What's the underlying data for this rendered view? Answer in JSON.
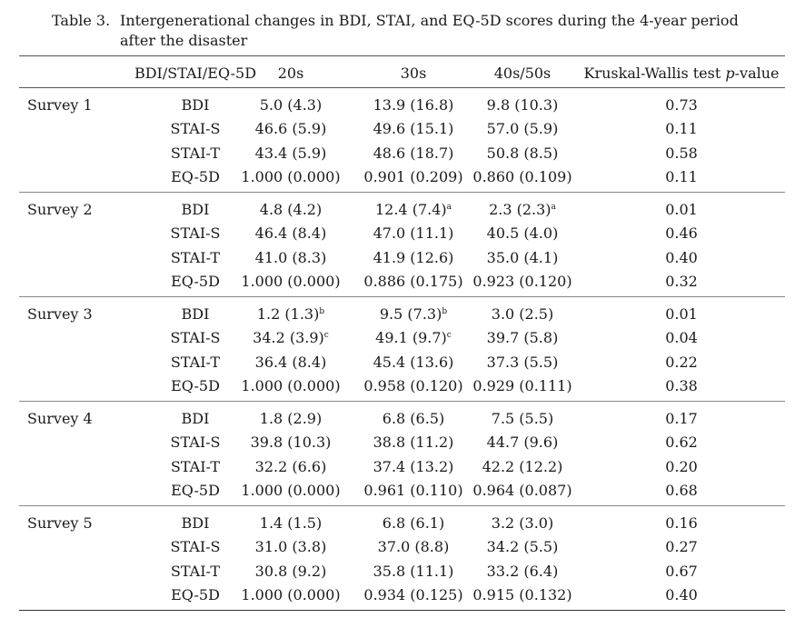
{
  "caption": {
    "label": "Table 3.",
    "text": "Intergenerational changes in BDI, STAI, and EQ-5D scores during the 4-year period after the disaster"
  },
  "header": {
    "measure": "BDI/STAI/EQ-5D",
    "col_20s": "20s",
    "col_30s": "30s",
    "col_40s50s": "40s/50s",
    "col_p_prefix": "Kruskal-Wallis test ",
    "col_p_italic": "p",
    "col_p_suffix": "-value"
  },
  "surveys": [
    {
      "name": "Survey 1",
      "rows": [
        {
          "measure": "BDI",
          "v20": "5.0 (4.3)",
          "v30": "13.9 (16.8)",
          "v40": "9.8 (10.3)",
          "p": "0.73"
        },
        {
          "measure": "STAI-S",
          "v20": "46.6 (5.9)",
          "v30": "49.6 (15.1)",
          "v40": "57.0 (5.9)",
          "p": "0.11"
        },
        {
          "measure": "STAI-T",
          "v20": "43.4 (5.9)",
          "v30": "48.6 (18.7)",
          "v40": "50.8 (8.5)",
          "p": "0.58"
        },
        {
          "measure": "EQ-5D",
          "v20": "1.000 (0.000)",
          "v30": "0.901 (0.209)",
          "v40": "0.860 (0.109)",
          "p": "0.11"
        }
      ]
    },
    {
      "name": "Survey 2",
      "rows": [
        {
          "measure": "BDI",
          "v20": "4.8 (4.2)",
          "v30": "12.4 (7.4)",
          "s30": "a",
          "v40": "2.3 (2.3)",
          "s40": "a",
          "p": "0.01"
        },
        {
          "measure": "STAI-S",
          "v20": "46.4 (8.4)",
          "v30": "47.0 (11.1)",
          "v40": "40.5 (4.0)",
          "p": "0.46"
        },
        {
          "measure": "STAI-T",
          "v20": "41.0 (8.3)",
          "v30": "41.9 (12.6)",
          "v40": "35.0 (4.1)",
          "p": "0.40"
        },
        {
          "measure": "EQ-5D",
          "v20": "1.000 (0.000)",
          "v30": "0.886 (0.175)",
          "v40": "0.923 (0.120)",
          "p": "0.32"
        }
      ]
    },
    {
      "name": "Survey 3",
      "rows": [
        {
          "measure": "BDI",
          "v20": "1.2 (1.3)",
          "s20": "b",
          "v30": "9.5 (7.3)",
          "s30": "b",
          "v40": "3.0 (2.5)",
          "p": "0.01"
        },
        {
          "measure": "STAI-S",
          "v20": "34.2 (3.9)",
          "s20": "c",
          "v30": "49.1 (9.7)",
          "s30": "c",
          "v40": "39.7 (5.8)",
          "p": "0.04"
        },
        {
          "measure": "STAI-T",
          "v20": "36.4 (8.4)",
          "v30": "45.4 (13.6)",
          "v40": "37.3 (5.5)",
          "p": "0.22"
        },
        {
          "measure": "EQ-5D",
          "v20": "1.000 (0.000)",
          "v30": "0.958 (0.120)",
          "v40": "0.929 (0.111)",
          "p": "0.38"
        }
      ]
    },
    {
      "name": "Survey 4",
      "rows": [
        {
          "measure": "BDI",
          "v20": "1.8 (2.9)",
          "v30": "6.8 (6.5)",
          "v40": "7.5 (5.5)",
          "p": "0.17"
        },
        {
          "measure": "STAI-S",
          "v20": "39.8 (10.3)",
          "v30": "38.8 (11.2)",
          "v40": "44.7 (9.6)",
          "p": "0.62"
        },
        {
          "measure": "STAI-T",
          "v20": "32.2 (6.6)",
          "v30": "37.4 (13.2)",
          "v40": "42.2 (12.2)",
          "p": "0.20"
        },
        {
          "measure": "EQ-5D",
          "v20": "1.000 (0.000)",
          "v30": "0.961 (0.110)",
          "v40": "0.964 (0.087)",
          "p": "0.68"
        }
      ]
    },
    {
      "name": "Survey 5",
      "rows": [
        {
          "measure": "BDI",
          "v20": "1.4 (1.5)",
          "v30": "6.8 (6.1)",
          "v40": "3.2 (3.0)",
          "p": "0.16"
        },
        {
          "measure": "STAI-S",
          "v20": "31.0 (3.8)",
          "v30": "37.0 (8.8)",
          "v40": "34.2 (5.5)",
          "p": "0.27"
        },
        {
          "measure": "STAI-T",
          "v20": "30.8 (9.2)",
          "v30": "35.8 (11.1)",
          "v40": "33.2 (6.4)",
          "p": "0.67"
        },
        {
          "measure": "EQ-5D",
          "v20": "1.000 (0.000)",
          "v30": "0.934 (0.125)",
          "v40": "0.915 (0.132)",
          "p": "0.40"
        }
      ]
    }
  ]
}
